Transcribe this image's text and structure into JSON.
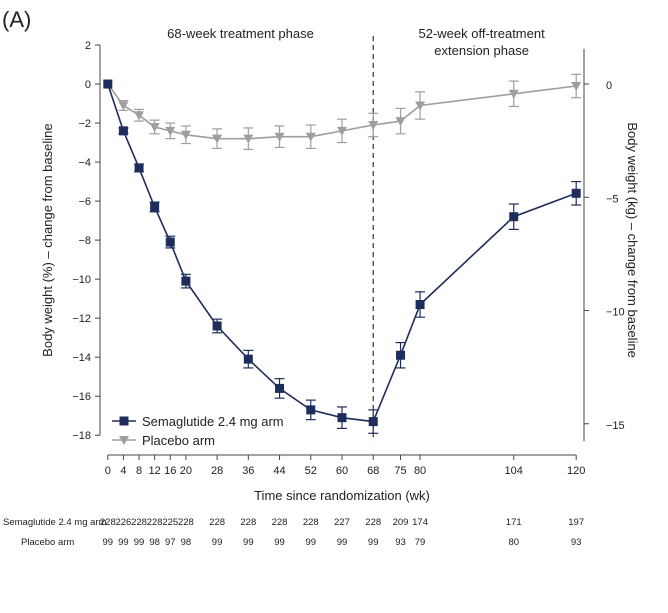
{
  "chart_data": {
    "type": "line",
    "panel_label": "(A)",
    "phases": {
      "treatment": {
        "label": "68-week treatment phase"
      },
      "extension": {
        "line1": "52-week off-treatment",
        "line2": "extension phase"
      },
      "divider_week": 68
    },
    "xlabel": "Time since randomization (wk)",
    "ylabel_left": "Body weight (%) – change from baseline",
    "ylabel_right": "Body weight (kg) – change from baseline",
    "xlim": [
      -2,
      122
    ],
    "ylim_left": [
      -18.5,
      2
    ],
    "ylim_right_ticks": [
      0,
      -5,
      -10,
      -15
    ],
    "right_axis_scale_kg_per_pct": 0.8615,
    "x_ticks": [
      0,
      4,
      8,
      12,
      16,
      20,
      28,
      36,
      44,
      52,
      60,
      68,
      75,
      80,
      104,
      120
    ],
    "y_ticks_left": [
      2,
      0,
      -2,
      -4,
      -6,
      -8,
      -10,
      -12,
      -14,
      -16,
      -18
    ],
    "series": [
      {
        "name": "Semaglutide 2.4 mg arm",
        "color": "#1f2d5c",
        "marker": "square",
        "x": [
          0,
          4,
          8,
          12,
          16,
          20,
          28,
          36,
          44,
          52,
          60,
          68,
          75,
          80,
          104,
          120
        ],
        "values": [
          0,
          -2.4,
          -4.3,
          -6.3,
          -8.1,
          -10.1,
          -12.4,
          -14.1,
          -15.6,
          -16.7,
          -17.1,
          -17.3,
          -13.9,
          -11.3,
          -6.8,
          -5.6
        ],
        "errors": [
          0,
          0.15,
          0.2,
          0.25,
          0.3,
          0.35,
          0.35,
          0.45,
          0.5,
          0.5,
          0.55,
          0.6,
          0.65,
          0.65,
          0.65,
          0.6
        ]
      },
      {
        "name": "Placebo arm",
        "color": "#9e9e9e",
        "marker": "triangle-down",
        "x": [
          0,
          4,
          8,
          12,
          16,
          20,
          28,
          36,
          44,
          52,
          60,
          68,
          75,
          80,
          104,
          120
        ],
        "values": [
          0,
          -1.1,
          -1.6,
          -2.2,
          -2.4,
          -2.6,
          -2.8,
          -2.8,
          -2.7,
          -2.7,
          -2.4,
          -2.1,
          -1.9,
          -1.1,
          -0.5,
          -0.1
        ],
        "errors": [
          0,
          0.25,
          0.3,
          0.35,
          0.4,
          0.45,
          0.5,
          0.55,
          0.55,
          0.6,
          0.6,
          0.6,
          0.65,
          0.7,
          0.65,
          0.6
        ]
      }
    ],
    "legend": {
      "position": "bottom-left",
      "entries": [
        "Semaglutide 2.4 mg arm",
        "Placebo arm"
      ]
    },
    "n_at_risk": [
      {
        "label": "Semaglutide 2.4 mg arm",
        "values": [
          "228",
          "226",
          "228",
          "228",
          "225",
          "228",
          "228",
          "228",
          "228",
          "228",
          "227",
          "228",
          "209",
          "174",
          "171",
          "197"
        ]
      },
      {
        "label": "Placebo arm",
        "values": [
          "99",
          "99",
          "99",
          "98",
          "97",
          "98",
          "99",
          "99",
          "99",
          "99",
          "99",
          "99",
          "93",
          "79",
          "80",
          "93"
        ]
      }
    ]
  }
}
